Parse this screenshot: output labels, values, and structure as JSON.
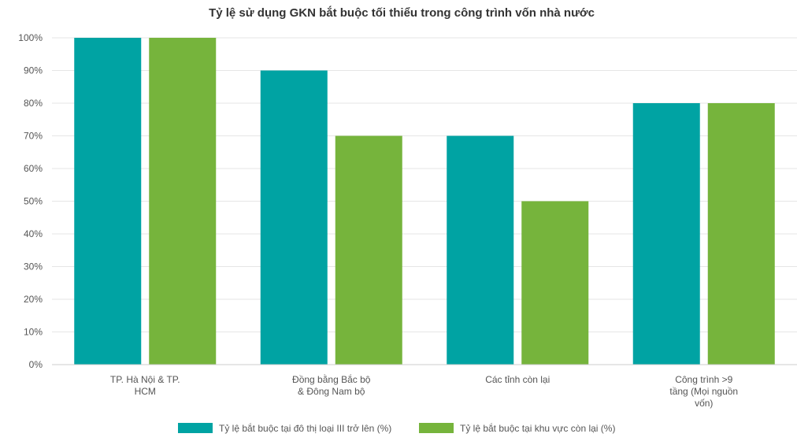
{
  "chart_data": {
    "type": "bar",
    "title": "Tỷ lệ sử dụng GKN bắt buộc tối thiểu trong công trình vốn nhà nước",
    "categories": [
      [
        "TP. Hà Nội & TP.",
        "HCM"
      ],
      [
        "Đồng bằng Bắc bộ",
        "& Đông Nam bộ"
      ],
      [
        "Các tỉnh còn lại"
      ],
      [
        "Công trình >9",
        "tầng (Mọi nguồn",
        "vốn)"
      ]
    ],
    "series": [
      {
        "name": "Tỷ lệ bắt buộc tại đô thị loại III trở lên (%)",
        "color": "#00A3A3",
        "values": [
          100,
          90,
          70,
          80
        ]
      },
      {
        "name": "Tỷ lệ bắt buộc tại khu vực còn lại (%)",
        "color": "#76B43C",
        "values": [
          100,
          70,
          50,
          80
        ]
      }
    ],
    "ylim": [
      0,
      100
    ],
    "yticks": [
      "0%",
      "10%",
      "20%",
      "30%",
      "40%",
      "50%",
      "60%",
      "70%",
      "80%",
      "90%",
      "100%"
    ],
    "grid": true,
    "legend_position": "bottom"
  }
}
